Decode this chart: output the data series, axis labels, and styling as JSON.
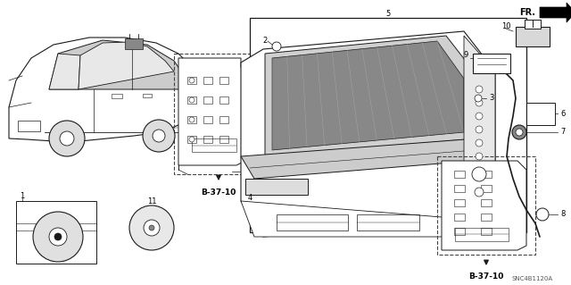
{
  "bg_color": "#ffffff",
  "diagram_code": "SNC4B1120A",
  "b3710_label": "B-37-10",
  "fr_label": "FR.",
  "line_color": "#1a1a1a",
  "dashed_color": "#444444",
  "gray_fill": "#cccccc",
  "dark_fill": "#555555",
  "mid_fill": "#999999"
}
